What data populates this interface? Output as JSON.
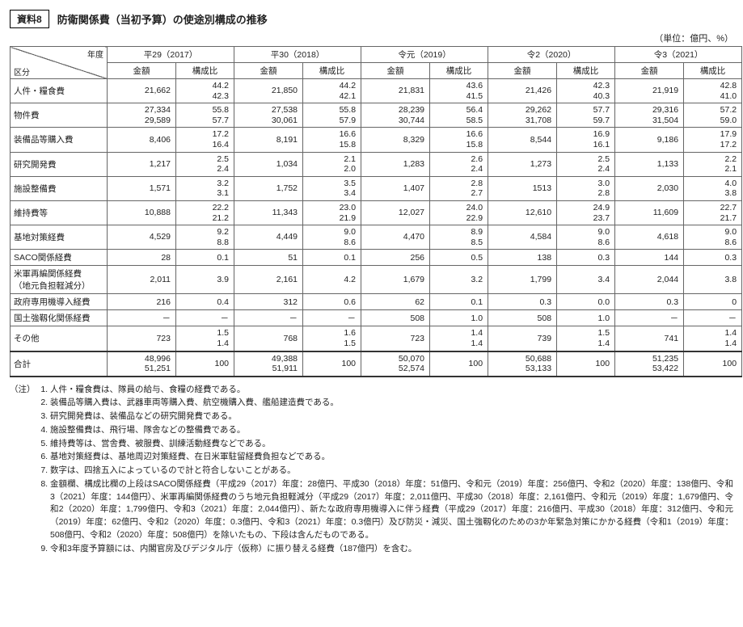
{
  "title_box": "資料8",
  "title_text": "防衛関係費（当初予算）の使途別構成の推移",
  "unit": "（単位：億円、%）",
  "diag_top": "年度",
  "diag_bottom": "区分",
  "sub_amount": "金額",
  "sub_ratio": "構成比",
  "years": [
    "平29（2017）",
    "平30（2018）",
    "令元（2019）",
    "令2（2020）",
    "令3（2021）"
  ],
  "rows": [
    {
      "label": "人件・糧食費",
      "cells": [
        {
          "a": [
            "21,662"
          ],
          "r": [
            "44.2",
            "42.3"
          ]
        },
        {
          "a": [
            "21,850"
          ],
          "r": [
            "44.2",
            "42.1"
          ]
        },
        {
          "a": [
            "21,831"
          ],
          "r": [
            "43.6",
            "41.5"
          ]
        },
        {
          "a": [
            "21,426"
          ],
          "r": [
            "42.3",
            "40.3"
          ]
        },
        {
          "a": [
            "21,919"
          ],
          "r": [
            "42.8",
            "41.0"
          ]
        }
      ]
    },
    {
      "label": "物件費",
      "cells": [
        {
          "a": [
            "27,334",
            "29,589"
          ],
          "r": [
            "55.8",
            "57.7"
          ]
        },
        {
          "a": [
            "27,538",
            "30,061"
          ],
          "r": [
            "55.8",
            "57.9"
          ]
        },
        {
          "a": [
            "28,239",
            "30,744"
          ],
          "r": [
            "56.4",
            "58.5"
          ]
        },
        {
          "a": [
            "29,262",
            "31,708"
          ],
          "r": [
            "57.7",
            "59.7"
          ]
        },
        {
          "a": [
            "29,316",
            "31,504"
          ],
          "r": [
            "57.2",
            "59.0"
          ]
        }
      ]
    },
    {
      "label": "装備品等購入費",
      "cells": [
        {
          "a": [
            "8,406"
          ],
          "r": [
            "17.2",
            "16.4"
          ]
        },
        {
          "a": [
            "8,191"
          ],
          "r": [
            "16.6",
            "15.8"
          ]
        },
        {
          "a": [
            "8,329"
          ],
          "r": [
            "16.6",
            "15.8"
          ]
        },
        {
          "a": [
            "8,544"
          ],
          "r": [
            "16.9",
            "16.1"
          ]
        },
        {
          "a": [
            "9,186"
          ],
          "r": [
            "17.9",
            "17.2"
          ]
        }
      ]
    },
    {
      "label": "研究開発費",
      "cells": [
        {
          "a": [
            "1,217"
          ],
          "r": [
            "2.5",
            "2.4"
          ]
        },
        {
          "a": [
            "1,034"
          ],
          "r": [
            "2.1",
            "2.0"
          ]
        },
        {
          "a": [
            "1,283"
          ],
          "r": [
            "2.6",
            "2.4"
          ]
        },
        {
          "a": [
            "1,273"
          ],
          "r": [
            "2.5",
            "2.4"
          ]
        },
        {
          "a": [
            "1,133"
          ],
          "r": [
            "2.2",
            "2.1"
          ]
        }
      ]
    },
    {
      "label": "施設整備費",
      "cells": [
        {
          "a": [
            "1,571"
          ],
          "r": [
            "3.2",
            "3.1"
          ]
        },
        {
          "a": [
            "1,752"
          ],
          "r": [
            "3.5",
            "3.4"
          ]
        },
        {
          "a": [
            "1,407"
          ],
          "r": [
            "2.8",
            "2.7"
          ]
        },
        {
          "a": [
            "1513"
          ],
          "r": [
            "3.0",
            "2.8"
          ]
        },
        {
          "a": [
            "2,030"
          ],
          "r": [
            "4.0",
            "3.8"
          ]
        }
      ]
    },
    {
      "label": "維持費等",
      "cells": [
        {
          "a": [
            "10,888"
          ],
          "r": [
            "22.2",
            "21.2"
          ]
        },
        {
          "a": [
            "11,343"
          ],
          "r": [
            "23.0",
            "21.9"
          ]
        },
        {
          "a": [
            "12,027"
          ],
          "r": [
            "24.0",
            "22.9"
          ]
        },
        {
          "a": [
            "12,610"
          ],
          "r": [
            "24.9",
            "23.7"
          ]
        },
        {
          "a": [
            "11,609"
          ],
          "r": [
            "22.7",
            "21.7"
          ]
        }
      ]
    },
    {
      "label": "基地対策経費",
      "cells": [
        {
          "a": [
            "4,529"
          ],
          "r": [
            "9.2",
            "8.8"
          ]
        },
        {
          "a": [
            "4,449"
          ],
          "r": [
            "9.0",
            "8.6"
          ]
        },
        {
          "a": [
            "4,470"
          ],
          "r": [
            "8.9",
            "8.5"
          ]
        },
        {
          "a": [
            "4,584"
          ],
          "r": [
            "9.0",
            "8.6"
          ]
        },
        {
          "a": [
            "4,618"
          ],
          "r": [
            "9.0",
            "8.6"
          ]
        }
      ]
    },
    {
      "label": "SACO関係経費",
      "cells": [
        {
          "a": [
            "28"
          ],
          "r": [
            "0.1"
          ]
        },
        {
          "a": [
            "51"
          ],
          "r": [
            "0.1"
          ]
        },
        {
          "a": [
            "256"
          ],
          "r": [
            "0.5"
          ]
        },
        {
          "a": [
            "138"
          ],
          "r": [
            "0.3"
          ]
        },
        {
          "a": [
            "144"
          ],
          "r": [
            "0.3"
          ]
        }
      ]
    },
    {
      "label": "米軍再編関係経費\n（地元負担軽減分）",
      "cells": [
        {
          "a": [
            "2,011"
          ],
          "r": [
            "3.9"
          ]
        },
        {
          "a": [
            "2,161"
          ],
          "r": [
            "4.2"
          ]
        },
        {
          "a": [
            "1,679"
          ],
          "r": [
            "3.2"
          ]
        },
        {
          "a": [
            "1,799"
          ],
          "r": [
            "3.4"
          ]
        },
        {
          "a": [
            "2,044"
          ],
          "r": [
            "3.8"
          ]
        }
      ]
    },
    {
      "label": "政府専用機導入経費",
      "cells": [
        {
          "a": [
            "216"
          ],
          "r": [
            "0.4"
          ]
        },
        {
          "a": [
            "312"
          ],
          "r": [
            "0.6"
          ]
        },
        {
          "a": [
            "62"
          ],
          "r": [
            "0.1"
          ]
        },
        {
          "a": [
            "0.3"
          ],
          "r": [
            "0.0"
          ]
        },
        {
          "a": [
            "0.3"
          ],
          "r": [
            "0"
          ]
        }
      ]
    },
    {
      "label": "国土強靱化関係経費",
      "cells": [
        {
          "a": [
            "－"
          ],
          "r": [
            "－"
          ]
        },
        {
          "a": [
            "－"
          ],
          "r": [
            "－"
          ]
        },
        {
          "a": [
            "508"
          ],
          "r": [
            "1.0"
          ]
        },
        {
          "a": [
            "508"
          ],
          "r": [
            "1.0"
          ]
        },
        {
          "a": [
            "－"
          ],
          "r": [
            "－"
          ]
        }
      ]
    },
    {
      "label": "その他",
      "cells": [
        {
          "a": [
            "723"
          ],
          "r": [
            "1.5",
            "1.4"
          ]
        },
        {
          "a": [
            "768"
          ],
          "r": [
            "1.6",
            "1.5"
          ]
        },
        {
          "a": [
            "723"
          ],
          "r": [
            "1.4",
            "1.4"
          ]
        },
        {
          "a": [
            "739"
          ],
          "r": [
            "1.5",
            "1.4"
          ]
        },
        {
          "a": [
            "741"
          ],
          "r": [
            "1.4",
            "1.4"
          ]
        }
      ]
    },
    {
      "label": "合計",
      "total": true,
      "cells": [
        {
          "a": [
            "48,996",
            "51,251"
          ],
          "r": [
            "100"
          ]
        },
        {
          "a": [
            "49,388",
            "51,911"
          ],
          "r": [
            "100"
          ]
        },
        {
          "a": [
            "50,070",
            "52,574"
          ],
          "r": [
            "100"
          ]
        },
        {
          "a": [
            "50,688",
            "53,133"
          ],
          "r": [
            "100"
          ]
        },
        {
          "a": [
            "51,235",
            "53,422"
          ],
          "r": [
            "100"
          ]
        }
      ]
    }
  ],
  "notes_label": "（注）",
  "notes": [
    "人件・糧食費は、隊員の給与、食糧の経費である。",
    "装備品等購入費は、武器車両等購入費、航空機購入費、艦船建造費である。",
    "研究開発費は、装備品などの研究開発費である。",
    "施設整備費は、飛行場、隊舎などの整備費である。",
    "維持費等は、営舎費、被服費、訓練活動経費などである。",
    "基地対策経費は、基地周辺対策経費、在日米軍駐留経費負担などである。",
    "数字は、四捨五入によっているので計と符合しないことがある。",
    "金額欄、構成比欄の上段はSACO関係経費（平成29（2017）年度：28億円、平成30（2018）年度：51億円、令和元（2019）年度：256億円、令和2（2020）年度：138億円、令和3（2021）年度：144億円）、米軍再編関係経費のうち地元負担軽減分（平成29（2017）年度：2,011億円、平成30（2018）年度：2,161億円、令和元（2019）年度：1,679億円、令和2（2020）年度：1,799億円、令和3（2021）年度：2,044億円）、新たな政府専用機導入に伴う経費（平成29（2017）年度：216億円、平成30（2018）年度：312億円、令和元（2019）年度：62億円、令和2（2020）年度：0.3億円、令和3（2021）年度：0.3億円）及び防災・減災、国土強靱化のための3か年緊急対策にかかる経費（令和1（2019）年度：508億円、令和2（2020）年度：508億円）を除いたもの、下段は含んだものである。",
    "令和3年度予算額には、内閣官房及びデジタル庁（仮称）に振り替える経費（187億円）を含む。"
  ]
}
